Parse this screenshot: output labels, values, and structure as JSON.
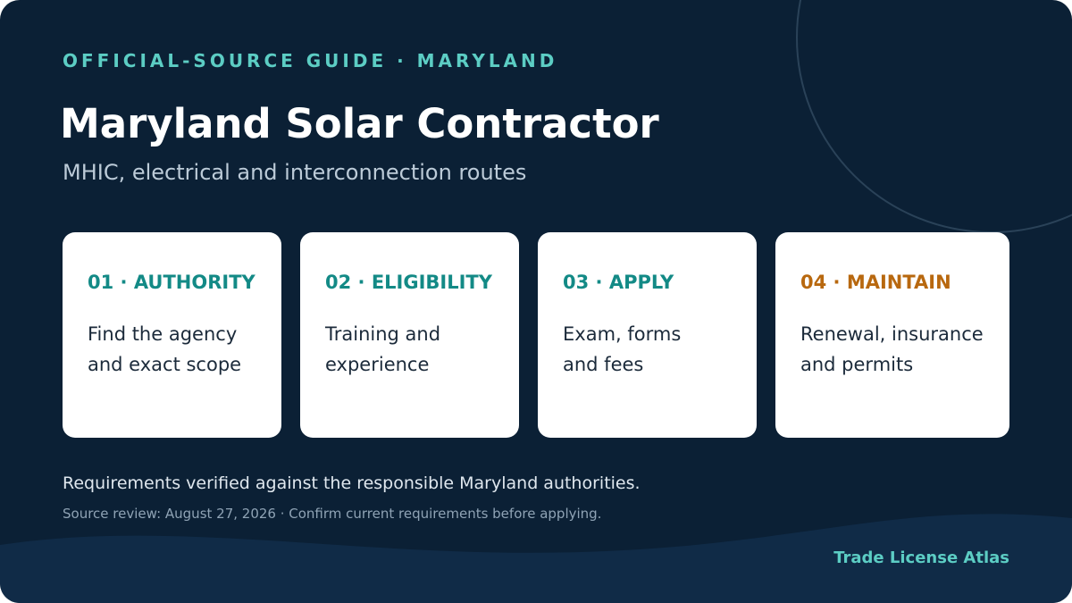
{
  "header": {
    "eyebrow": "OFFICIAL-SOURCE GUIDE · MARYLAND",
    "title": "Maryland Solar Contractor",
    "subtitle": "MHIC, electrical and interconnection routes"
  },
  "cards": [
    {
      "label": "01 · AUTHORITY",
      "lines": [
        "Find the agency",
        "and exact scope"
      ]
    },
    {
      "label": "02 · ELIGIBILITY",
      "lines": [
        "Training and",
        "experience"
      ]
    },
    {
      "label": "03 · APPLY",
      "lines": [
        "Exam, forms",
        "and fees"
      ]
    },
    {
      "label": "04 · MAINTAIN",
      "lines": [
        "Renewal, insurance",
        "and permits"
      ]
    }
  ],
  "footer": {
    "note": "Requirements verified against the responsible Maryland authorities.",
    "review": "Source review: August 27, 2026 · Confirm current requirements before applying.",
    "brand": "Trade License Atlas"
  }
}
